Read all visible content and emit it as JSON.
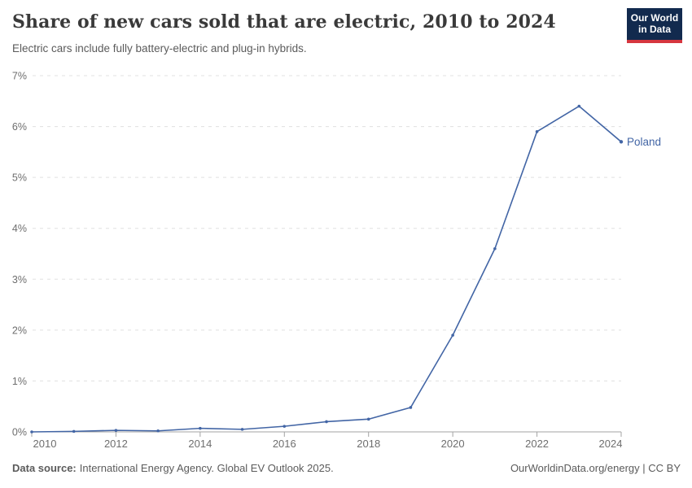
{
  "header": {
    "title": "Share of new cars sold that are electric, 2010 to 2024",
    "subtitle": "Electric cars include fully battery-electric and plug-in hybrids.",
    "logo": {
      "line1": "Our World",
      "line2": "in Data",
      "bg_color": "#122A4E",
      "bar_color": "#D6363F"
    }
  },
  "chart_data": {
    "type": "line",
    "title": "Share of new cars sold that are electric, 2010 to 2024",
    "x": [
      2010,
      2011,
      2012,
      2013,
      2014,
      2015,
      2016,
      2017,
      2018,
      2019,
      2020,
      2021,
      2022,
      2023,
      2024
    ],
    "series": [
      {
        "name": "Poland",
        "color": "#4265A5",
        "values": [
          0.0,
          0.01,
          0.03,
          0.02,
          0.07,
          0.05,
          0.11,
          0.2,
          0.25,
          0.48,
          1.9,
          3.6,
          5.9,
          6.4,
          5.7
        ]
      }
    ],
    "xlim": [
      2010,
      2024
    ],
    "ylim": [
      0,
      7
    ],
    "xticks": [
      2010,
      2012,
      2014,
      2016,
      2018,
      2020,
      2022,
      2024
    ],
    "xtick_labels": [
      "2010",
      "2012",
      "2014",
      "2016",
      "2018",
      "2020",
      "2022",
      "2024"
    ],
    "yticks": [
      0,
      1,
      2,
      3,
      4,
      5,
      6,
      7
    ],
    "ytick_labels": [
      "0%",
      "1%",
      "2%",
      "3%",
      "4%",
      "5%",
      "6%",
      "7%"
    ],
    "grid": "horizontal-dashed",
    "legend_position": "line-end-label",
    "end_label": "Poland"
  },
  "footer": {
    "source_label": "Data source:",
    "source_text": "International Energy Agency. Global EV Outlook 2025.",
    "rights_text": "OurWorldinData.org/energy | CC BY"
  },
  "colors": {
    "line": "#4265A5",
    "axis_text": "#6e6e6e",
    "gridline": "#e0e0e0",
    "axis_line": "#a3a3a3",
    "title_text": "#3a3a3a",
    "subtitle_text": "#5b5b5b",
    "footer_text": "#5b5b5b"
  }
}
